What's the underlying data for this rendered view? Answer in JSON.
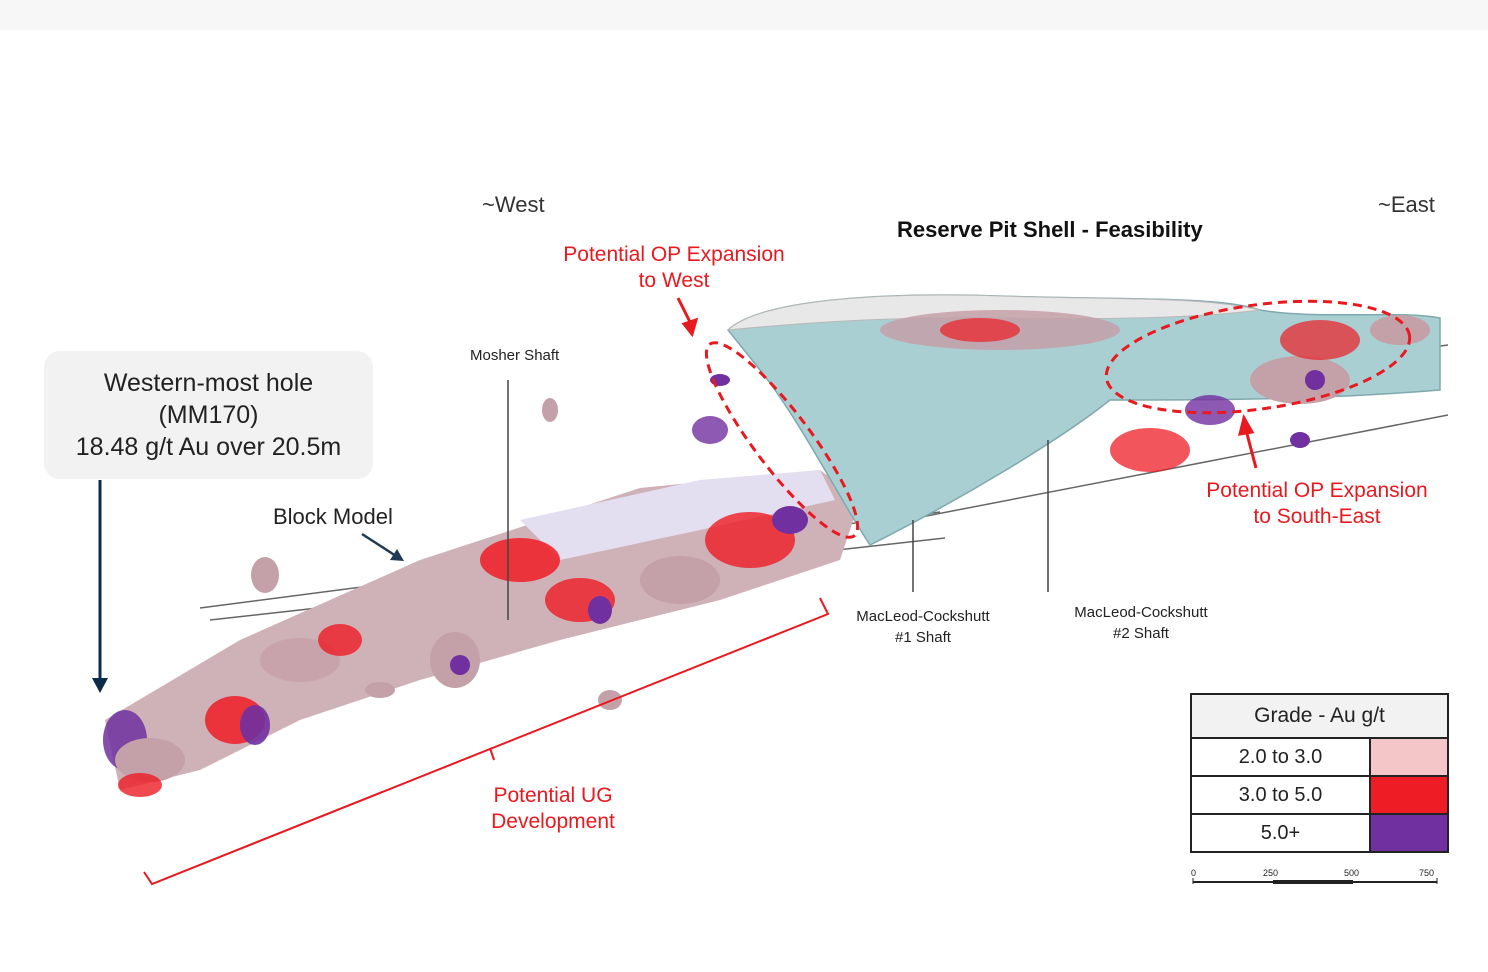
{
  "direction": {
    "west": "~West",
    "east": "~East"
  },
  "pit_title": "Reserve Pit Shell - Feasibility",
  "annotations": {
    "op_west": [
      "Potential OP Expansion",
      "to West"
    ],
    "op_southeast": [
      "Potential OP Expansion",
      "to South-East"
    ],
    "ug": [
      "Potential UG",
      "Development"
    ]
  },
  "shafts": {
    "mosher": "Mosher Shaft",
    "macleod1": [
      "MacLeod-Cockshutt",
      "#1 Shaft"
    ],
    "macleod2": [
      "MacLeod-Cockshutt",
      "#2 Shaft"
    ]
  },
  "block_model_label": "Block Model",
  "callout": {
    "line1": "Western-most hole",
    "line2": "(MM170)",
    "line3": "18.48 g/t Au over 20.5m"
  },
  "legend": {
    "title": "Grade - Au g/t",
    "rows": [
      {
        "label": "2.0 to 3.0",
        "color": "#f4c6c8"
      },
      {
        "label": "3.0 to 5.0",
        "color": "#ee1c24"
      },
      {
        "label": "5.0+",
        "color": "#7030a0"
      }
    ]
  },
  "scale_bar": {
    "ticks": [
      "0",
      "250",
      "500",
      "750"
    ]
  },
  "colors": {
    "annotation_red": "#e8191f",
    "pit_fill": "#a9cfd3",
    "callout_arrow": "#0d2c4a"
  }
}
